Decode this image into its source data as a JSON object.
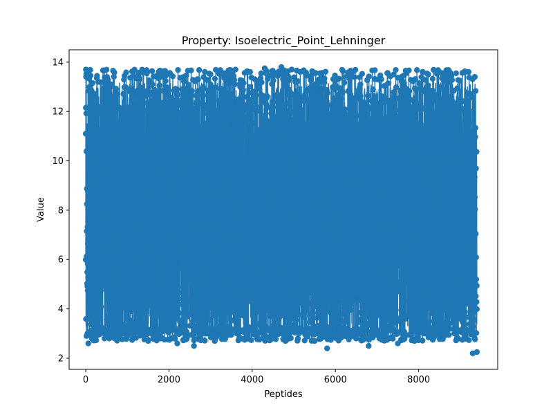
{
  "chart_data": {
    "type": "line",
    "title": "Property: Isoelectric_Point_Lehninger",
    "xlabel": "Peptides",
    "ylabel": "Value",
    "xlim": [
      -400,
      9900
    ],
    "ylim": [
      1.55,
      14.5
    ],
    "xticks": [
      0,
      2000,
      4000,
      6000,
      8000
    ],
    "xtick_labels": [
      "0",
      "2000",
      "4000",
      "6000",
      "8000"
    ],
    "yticks": [
      2,
      4,
      6,
      8,
      10,
      12,
      14
    ],
    "ytick_labels": [
      "2",
      "4",
      "6",
      "8",
      "10",
      "12",
      "14"
    ],
    "series": [
      {
        "color": "#1f77b4",
        "marker": "circle",
        "n_points": 9400,
        "x": [
          0,
          60,
          120,
          240,
          300,
          450,
          600,
          800,
          1000,
          1100,
          1300,
          1500,
          1700,
          1800,
          2000,
          2200,
          2400,
          2600,
          2700,
          2800,
          3000,
          3100,
          3300,
          3500,
          3600,
          3800,
          3950,
          4200,
          4300,
          4500,
          4700,
          4800,
          4950,
          5100,
          5300,
          5500,
          5600,
          5800,
          5900,
          6100,
          6250,
          6400,
          6600,
          6800,
          7000,
          7200,
          7400,
          7500,
          7700,
          7900,
          8100,
          8300,
          8500,
          8700,
          8900,
          9100,
          9200,
          9300,
          9350,
          9400
        ],
        "y": [
          11.1,
          2.6,
          12.8,
          3.0,
          13.2,
          2.8,
          13.1,
          2.9,
          13.2,
          3.0,
          12.9,
          2.7,
          13.2,
          2.8,
          13.0,
          2.6,
          12.8,
          2.5,
          13.3,
          3.0,
          13.1,
          2.7,
          13.5,
          3.1,
          13.7,
          2.8,
          13.6,
          3.3,
          13.75,
          2.9,
          13.8,
          2.7,
          13.7,
          2.8,
          13.5,
          2.7,
          13.3,
          2.4,
          13.1,
          3.6,
          13.4,
          2.9,
          13.1,
          2.5,
          13.3,
          3.0,
          13.5,
          2.6,
          13.55,
          2.7,
          13.6,
          3.4,
          13.6,
          3.6,
          13.55,
          3.7,
          13.6,
          2.2,
          13.4,
          2.25
        ]
      }
    ]
  }
}
